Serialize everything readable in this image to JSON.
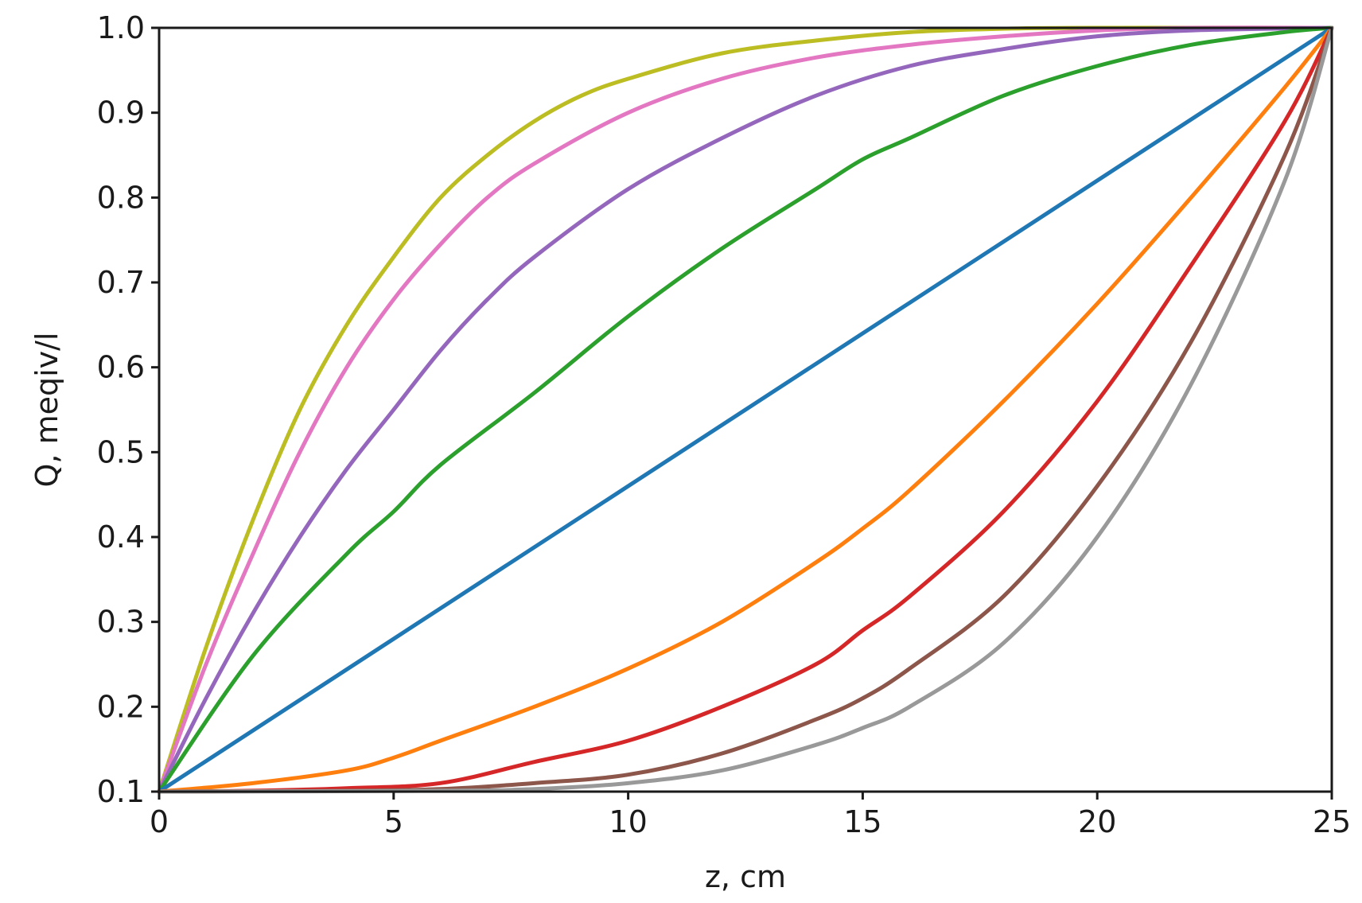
{
  "chart_data": {
    "type": "line",
    "title": "",
    "xlabel": "z, cm",
    "ylabel": "Q, meqiv/l",
    "xlim": [
      0,
      25
    ],
    "ylim": [
      0.1,
      1.0
    ],
    "xticks": [
      "0",
      "5",
      "10",
      "15",
      "20",
      "25"
    ],
    "yticks": [
      "0.1",
      "0.2",
      "0.3",
      "0.4",
      "0.5",
      "0.6",
      "0.7",
      "0.8",
      "0.9",
      "1.0"
    ],
    "grid": false,
    "legend": "none",
    "series": [
      {
        "color": "#bcbd22",
        "points": [
          [
            0,
            0.1
          ],
          [
            1,
            0.27
          ],
          [
            2,
            0.42
          ],
          [
            3,
            0.55
          ],
          [
            4,
            0.65
          ],
          [
            5,
            0.73
          ],
          [
            6,
            0.8
          ],
          [
            7,
            0.85
          ],
          [
            8,
            0.89
          ],
          [
            9,
            0.92
          ],
          [
            10,
            0.94
          ],
          [
            12,
            0.97
          ],
          [
            14,
            0.985
          ],
          [
            16,
            0.995
          ],
          [
            18,
            0.999
          ],
          [
            20,
            1.0
          ],
          [
            25,
            1.0
          ]
        ]
      },
      {
        "color": "#e377c2",
        "points": [
          [
            0,
            0.1
          ],
          [
            1,
            0.25
          ],
          [
            2,
            0.38
          ],
          [
            3,
            0.5
          ],
          [
            4,
            0.6
          ],
          [
            5,
            0.68
          ],
          [
            6,
            0.745
          ],
          [
            7,
            0.8
          ],
          [
            8,
            0.84
          ],
          [
            10,
            0.9
          ],
          [
            12,
            0.94
          ],
          [
            14,
            0.965
          ],
          [
            16,
            0.98
          ],
          [
            18,
            0.99
          ],
          [
            20,
            0.997
          ],
          [
            22,
            1.0
          ],
          [
            25,
            1.0
          ]
        ]
      },
      {
        "color": "#9467bd",
        "points": [
          [
            0,
            0.1
          ],
          [
            1,
            0.21
          ],
          [
            2,
            0.31
          ],
          [
            3,
            0.4
          ],
          [
            4,
            0.48
          ],
          [
            5,
            0.55
          ],
          [
            6,
            0.62
          ],
          [
            7,
            0.68
          ],
          [
            8,
            0.73
          ],
          [
            10,
            0.81
          ],
          [
            12,
            0.87
          ],
          [
            14,
            0.92
          ],
          [
            16,
            0.955
          ],
          [
            18,
            0.975
          ],
          [
            20,
            0.99
          ],
          [
            22,
            0.997
          ],
          [
            25,
            1.0
          ]
        ]
      },
      {
        "color": "#2ca02c",
        "points": [
          [
            0,
            0.1
          ],
          [
            2,
            0.26
          ],
          [
            4,
            0.38
          ],
          [
            5,
            0.43
          ],
          [
            6,
            0.485
          ],
          [
            8,
            0.57
          ],
          [
            10,
            0.66
          ],
          [
            12,
            0.74
          ],
          [
            14,
            0.81
          ],
          [
            15,
            0.845
          ],
          [
            16,
            0.87
          ],
          [
            18,
            0.92
          ],
          [
            20,
            0.955
          ],
          [
            22,
            0.98
          ],
          [
            24,
            0.995
          ],
          [
            25,
            1.0
          ]
        ]
      },
      {
        "color": "#1f77b4",
        "points": [
          [
            0,
            0.1
          ],
          [
            5,
            0.28
          ],
          [
            10,
            0.46
          ],
          [
            15,
            0.64
          ],
          [
            20,
            0.82
          ],
          [
            25,
            1.0
          ]
        ]
      },
      {
        "color": "#ff7f0e",
        "points": [
          [
            0,
            0.1
          ],
          [
            2,
            0.11
          ],
          [
            4,
            0.125
          ],
          [
            5,
            0.14
          ],
          [
            6,
            0.16
          ],
          [
            8,
            0.2
          ],
          [
            10,
            0.245
          ],
          [
            12,
            0.3
          ],
          [
            14,
            0.37
          ],
          [
            15,
            0.41
          ],
          [
            16,
            0.455
          ],
          [
            18,
            0.56
          ],
          [
            20,
            0.675
          ],
          [
            22,
            0.8
          ],
          [
            24,
            0.93
          ],
          [
            25,
            1.0
          ]
        ]
      },
      {
        "color": "#d62728",
        "points": [
          [
            0,
            0.1
          ],
          [
            2,
            0.101
          ],
          [
            4,
            0.104
          ],
          [
            6,
            0.11
          ],
          [
            8,
            0.135
          ],
          [
            10,
            0.16
          ],
          [
            12,
            0.2
          ],
          [
            14,
            0.25
          ],
          [
            15,
            0.29
          ],
          [
            16,
            0.33
          ],
          [
            18,
            0.43
          ],
          [
            20,
            0.56
          ],
          [
            22,
            0.72
          ],
          [
            24,
            0.89
          ],
          [
            25,
            1.0
          ]
        ]
      },
      {
        "color": "#8c564b",
        "points": [
          [
            0,
            0.1
          ],
          [
            4,
            0.101
          ],
          [
            6,
            0.103
          ],
          [
            8,
            0.11
          ],
          [
            10,
            0.12
          ],
          [
            12,
            0.145
          ],
          [
            14,
            0.185
          ],
          [
            15,
            0.21
          ],
          [
            16,
            0.245
          ],
          [
            18,
            0.33
          ],
          [
            20,
            0.46
          ],
          [
            22,
            0.63
          ],
          [
            24,
            0.85
          ],
          [
            25,
            1.0
          ]
        ]
      },
      {
        "color": "#999999",
        "points": [
          [
            0,
            0.1
          ],
          [
            6,
            0.101
          ],
          [
            8,
            0.103
          ],
          [
            10,
            0.11
          ],
          [
            12,
            0.125
          ],
          [
            14,
            0.155
          ],
          [
            15,
            0.175
          ],
          [
            16,
            0.2
          ],
          [
            18,
            0.275
          ],
          [
            20,
            0.4
          ],
          [
            22,
            0.58
          ],
          [
            24,
            0.82
          ],
          [
            25,
            1.0
          ]
        ]
      }
    ]
  }
}
